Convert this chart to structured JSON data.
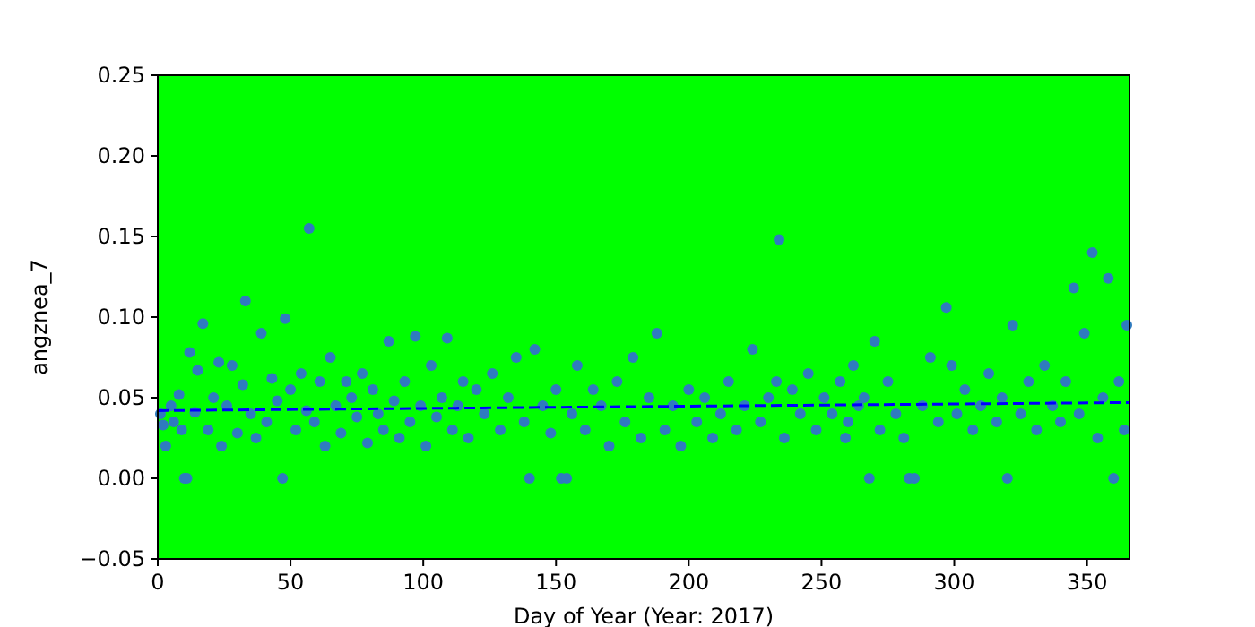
{
  "chart_data": {
    "type": "scatter",
    "xlabel": "Day of Year (Year: 2017)",
    "ylabel": "angznea_7",
    "xlim": [
      0,
      366
    ],
    "ylim": [
      -0.05,
      0.25
    ],
    "xticks": [
      0,
      50,
      100,
      150,
      200,
      250,
      300,
      350
    ],
    "yticks": [
      {
        "value": -0.05,
        "label": "−0.05"
      },
      {
        "value": 0,
        "label": "0.00"
      },
      {
        "value": 0.05,
        "label": "0.05"
      },
      {
        "value": 0.1,
        "label": "0.10"
      },
      {
        "value": 0.15,
        "label": "0.15"
      },
      {
        "value": 0.2,
        "label": "0.20"
      },
      {
        "value": 0.25,
        "label": "0.25"
      }
    ],
    "grid": false,
    "series": [
      {
        "color": "#2f7bbf",
        "marker": "circle",
        "x": [
          1,
          2,
          3,
          5,
          6,
          8,
          9,
          10,
          11,
          12,
          14,
          15,
          17,
          19,
          21,
          23,
          24,
          26,
          28,
          30,
          32,
          33,
          35,
          37,
          39,
          41,
          43,
          45,
          47,
          48,
          50,
          52,
          54,
          56,
          57,
          59,
          61,
          63,
          65,
          67,
          69,
          71,
          73,
          75,
          77,
          79,
          81,
          83,
          85,
          87,
          89,
          91,
          93,
          95,
          97,
          99,
          101,
          103,
          105,
          107,
          109,
          111,
          113,
          115,
          117,
          120,
          123,
          126,
          129,
          132,
          135,
          138,
          140,
          142,
          145,
          148,
          150,
          152,
          154,
          156,
          158,
          161,
          164,
          167,
          170,
          173,
          176,
          179,
          182,
          185,
          188,
          191,
          194,
          197,
          200,
          203,
          206,
          209,
          212,
          215,
          218,
          221,
          224,
          227,
          230,
          233,
          234,
          236,
          239,
          242,
          245,
          248,
          251,
          254,
          257,
          259,
          260,
          262,
          264,
          266,
          268,
          270,
          272,
          275,
          278,
          281,
          283,
          285,
          288,
          291,
          294,
          297,
          299,
          301,
          304,
          307,
          310,
          313,
          316,
          318,
          320,
          322,
          325,
          328,
          331,
          334,
          337,
          340,
          342,
          345,
          347,
          349,
          352,
          354,
          356,
          358,
          360,
          362,
          364,
          365
        ],
        "values": [
          0.04,
          0.033,
          0.02,
          0.045,
          0.035,
          0.052,
          0.03,
          0.0,
          0.0,
          0.078,
          0.041,
          0.067,
          0.096,
          0.03,
          0.05,
          0.072,
          0.02,
          0.045,
          0.07,
          0.028,
          0.058,
          0.11,
          0.04,
          0.025,
          0.09,
          0.035,
          0.062,
          0.048,
          0.0,
          0.099,
          0.055,
          0.03,
          0.065,
          0.042,
          0.155,
          0.035,
          0.06,
          0.02,
          0.075,
          0.045,
          0.028,
          0.06,
          0.05,
          0.038,
          0.065,
          0.022,
          0.055,
          0.04,
          0.03,
          0.085,
          0.048,
          0.025,
          0.06,
          0.035,
          0.088,
          0.045,
          0.02,
          0.07,
          0.038,
          0.05,
          0.087,
          0.03,
          0.045,
          0.06,
          0.025,
          0.055,
          0.04,
          0.065,
          0.03,
          0.05,
          0.075,
          0.035,
          0.0,
          0.08,
          0.045,
          0.028,
          0.055,
          0.0,
          0.0,
          0.04,
          0.07,
          0.03,
          0.055,
          0.045,
          0.02,
          0.06,
          0.035,
          0.075,
          0.025,
          0.05,
          0.09,
          0.03,
          0.045,
          0.02,
          0.055,
          0.035,
          0.05,
          0.025,
          0.04,
          0.06,
          0.03,
          0.045,
          0.08,
          0.035,
          0.05,
          0.06,
          0.148,
          0.025,
          0.055,
          0.04,
          0.065,
          0.03,
          0.05,
          0.04,
          0.06,
          0.025,
          0.035,
          0.07,
          0.045,
          0.05,
          0.0,
          0.085,
          0.03,
          0.06,
          0.04,
          0.025,
          0.0,
          0.0,
          0.045,
          0.075,
          0.035,
          0.106,
          0.07,
          0.04,
          0.055,
          0.03,
          0.045,
          0.065,
          0.035,
          0.05,
          0.0,
          0.095,
          0.04,
          0.06,
          0.03,
          0.07,
          0.045,
          0.035,
          0.06,
          0.118,
          0.04,
          0.09,
          0.14,
          0.025,
          0.05,
          0.124,
          0.0,
          0.06,
          0.03,
          0.095
        ]
      },
      {
        "type": "line",
        "color": "#0000ff",
        "line_style": "dashed",
        "marker": "none",
        "x": [
          0,
          366
        ],
        "values": [
          0.042,
          0.047
        ]
      }
    ]
  }
}
